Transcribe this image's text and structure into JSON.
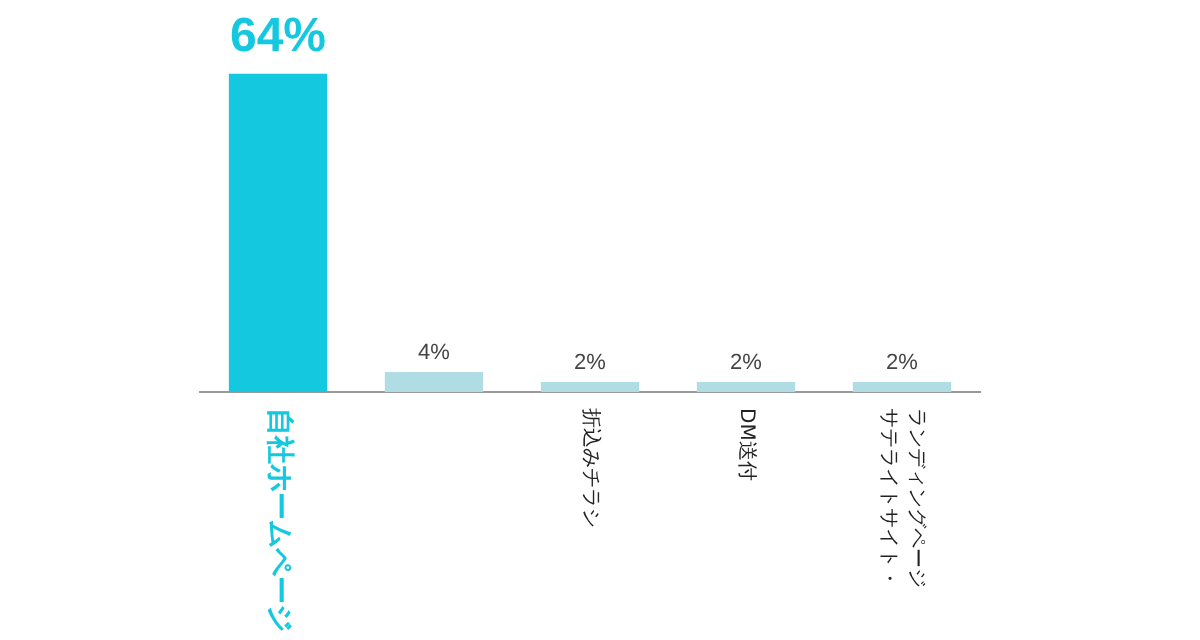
{
  "chart_data": {
    "type": "bar",
    "categories": [
      "自社ホームページ",
      null,
      "折込みチラシ",
      "DM送付",
      "ランディングページサテライトサイト・"
    ],
    "values": [
      64,
      4,
      2,
      2,
      2
    ],
    "colors": [
      "#14c8e0",
      "#b0dde4",
      "#b0dde4",
      "#b0dde4",
      "#b0dde4"
    ],
    "value_labels": [
      "64%",
      "4%",
      "2%",
      "2%",
      "2%"
    ],
    "grid": false,
    "legend": false,
    "tick_labels": "x"
  }
}
